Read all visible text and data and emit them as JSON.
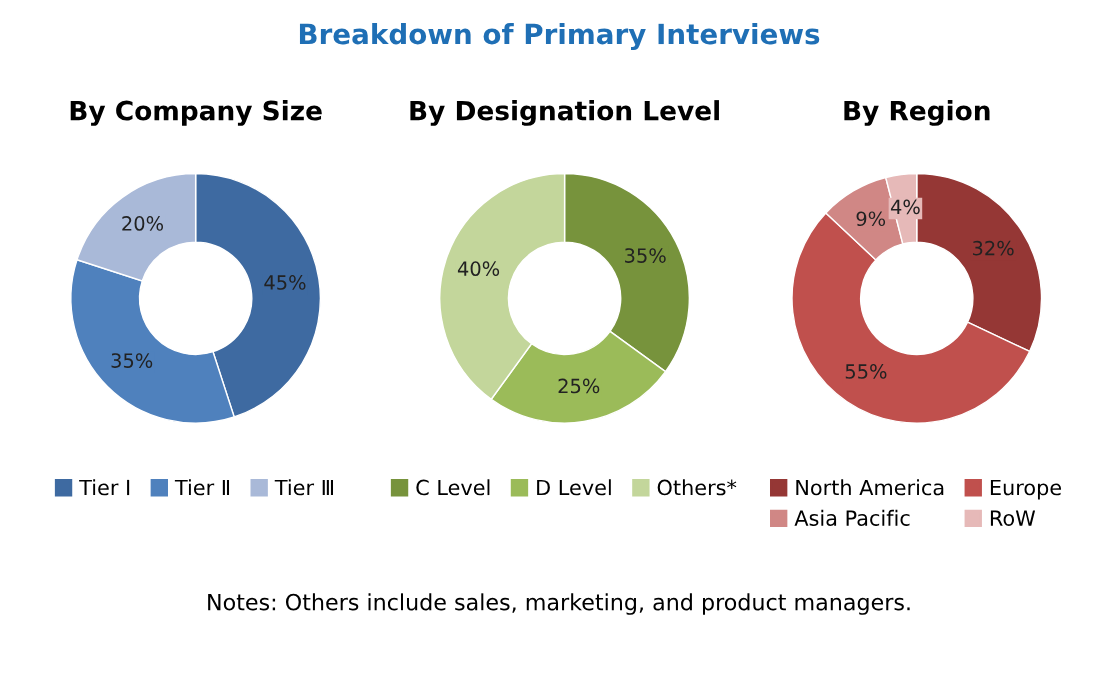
{
  "chart_data": [
    {
      "type": "donut",
      "title": "By Company Size",
      "categories": [
        "Tier I",
        "Tier Ⅱ",
        "Tier Ⅲ"
      ],
      "values": [
        45,
        35,
        20
      ],
      "value_labels": [
        "45%",
        "35%",
        "20%"
      ],
      "colors": [
        "#3e6aa1",
        "#4f81bd",
        "#a9b9d8"
      ],
      "legend": "bottom"
    },
    {
      "type": "donut",
      "title": "Breakdown of Primary Interviews",
      "subtitle": "By Designation Level",
      "categories": [
        "C Level",
        "D Level",
        "Others*"
      ],
      "values": [
        35,
        25,
        40
      ],
      "value_labels": [
        "35%",
        "25%",
        "40%"
      ],
      "colors": [
        "#77933c",
        "#9bbb59",
        "#c3d69b"
      ],
      "legend": "bottom"
    },
    {
      "type": "donut",
      "title": "By Region",
      "categories": [
        "North America",
        "Europe",
        "Asia Pacific",
        "RoW"
      ],
      "values": [
        32,
        55,
        9,
        4
      ],
      "value_labels": [
        "32%",
        "55%",
        "9%",
        "4%"
      ],
      "colors": [
        "#953735",
        "#c0504d",
        "#d08785",
        "#e6b9b8"
      ],
      "legend": "bottom",
      "annotations": [
        "Notes: Others include sales, marketing, and product managers."
      ]
    }
  ]
}
